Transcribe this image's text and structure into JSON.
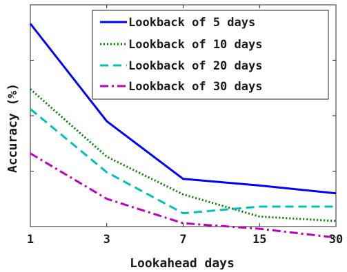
{
  "chart_data": {
    "type": "line",
    "title": "",
    "xlabel": "Lookahead days",
    "ylabel": "Accuracy (%)",
    "x": [
      "1",
      "3",
      "7",
      "15",
      "30"
    ],
    "yticks": [],
    "ylim": [
      0,
      100
    ],
    "grid": false,
    "legend_position": "top-right",
    "series": [
      {
        "name": "Lookback of 5 days",
        "color": "#0000ff",
        "dash": "solid",
        "values": [
          91.5,
          47.5,
          21.5,
          18.5,
          15.0
        ]
      },
      {
        "name": "Lookback of 10 days",
        "color": "#008000",
        "dash": "dotted",
        "values": [
          62.0,
          31.5,
          14.5,
          4.5,
          2.5
        ]
      },
      {
        "name": "Lookback of 20 days",
        "color": "#00bfbf",
        "dash": "dashed",
        "values": [
          53.0,
          24.5,
          6.0,
          9.0,
          9.0
        ]
      },
      {
        "name": "Lookback of 30 days",
        "color": "#bf00bf",
        "dash": "dashdot",
        "values": [
          33.0,
          12.5,
          1.5,
          -1.0,
          -5.0
        ]
      }
    ]
  }
}
